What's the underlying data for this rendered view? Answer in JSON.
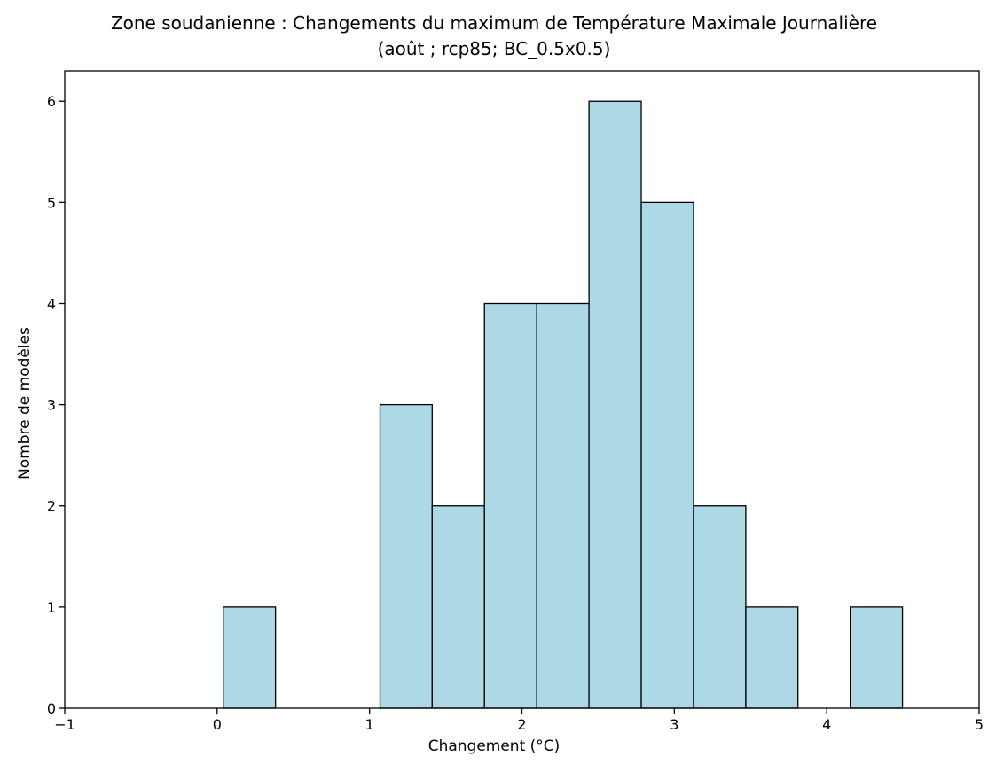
{
  "chart_data": {
    "type": "bar",
    "title_line1": "Zone soudanienne : Changements du maximum de Température Maximale Journalière",
    "title_line2": "(août ; rcp85; BC_0.5x0.5)",
    "xlabel": "Changement (°C)",
    "ylabel": "Nombre de modèles",
    "xlim": [
      -1,
      5
    ],
    "ylim": [
      0,
      6.3
    ],
    "xticks": [
      -1,
      0,
      1,
      2,
      3,
      4,
      5
    ],
    "xtick_labels": [
      "−1",
      "0",
      "1",
      "2",
      "3",
      "4",
      "5"
    ],
    "yticks": [
      0,
      1,
      2,
      3,
      4,
      5,
      6
    ],
    "ytick_labels": [
      "0",
      "1",
      "2",
      "3",
      "4",
      "5",
      "6"
    ],
    "bin_edges": [
      0.04,
      0.383,
      0.726,
      1.069,
      1.411,
      1.754,
      2.097,
      2.44,
      2.783,
      3.126,
      3.469,
      3.811,
      4.154,
      4.497
    ],
    "counts": [
      1,
      0,
      0,
      3,
      2,
      4,
      4,
      6,
      5,
      2,
      1,
      0,
      1
    ],
    "grid": false,
    "bar_color": "#add8e6",
    "edge_color": "#000000"
  }
}
